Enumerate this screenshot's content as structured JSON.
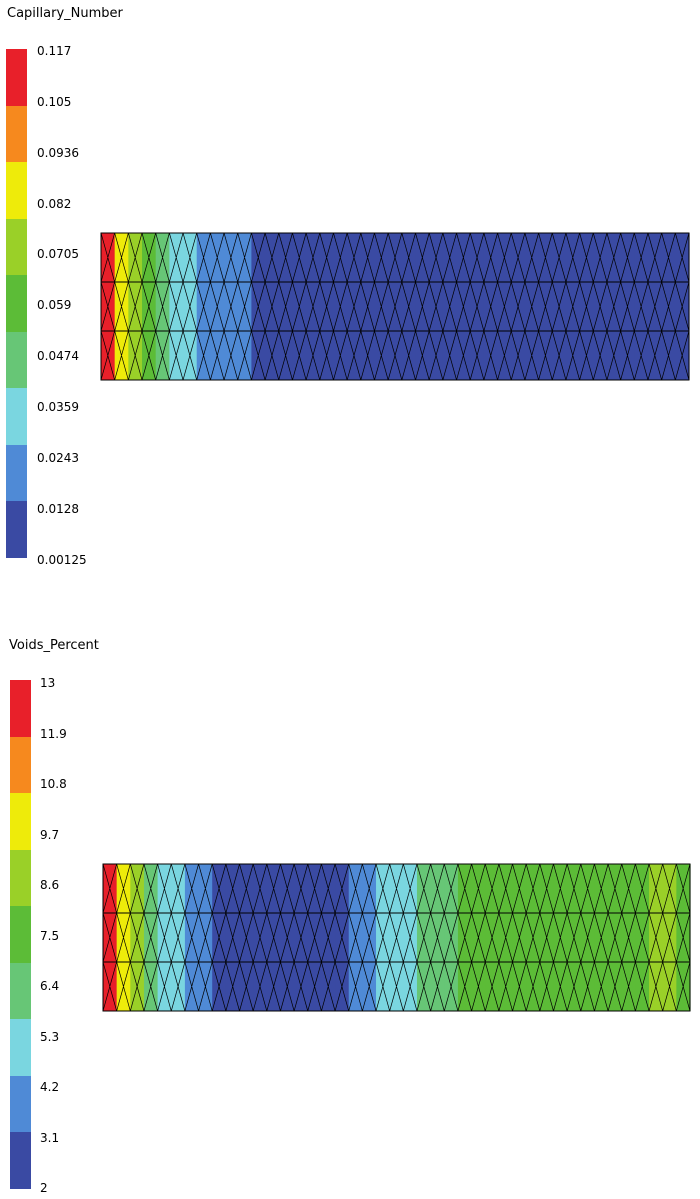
{
  "plots": [
    {
      "title": "Capillary_Number",
      "legend": {
        "labels": [
          "0.117",
          "0.105",
          "0.0936",
          "0.082",
          "0.0705",
          "0.059",
          "0.0474",
          "0.0359",
          "0.0243",
          "0.0128",
          "0.00125"
        ],
        "colors": [
          "#e8202a",
          "#f6891e",
          "#eeeb0a",
          "#9ad028",
          "#5cbc37",
          "#67c676",
          "#7ad6e0",
          "#4f8ad6",
          "#3a4aa3"
        ]
      },
      "mesh": {
        "rows": 3,
        "columns": 43,
        "column_colors": [
          "#e8202a",
          "#eeeb0a",
          "#9ad028",
          "#5cbc37",
          "#67c676",
          "#7ad6e0",
          "#7ad6e0",
          "#4f8ad6",
          "#4f8ad6",
          "#4f8ad6",
          "#4f8ad6",
          "#3a4aa3",
          "#3a4aa3",
          "#3a4aa3",
          "#3a4aa3",
          "#3a4aa3",
          "#3a4aa3",
          "#3a4aa3",
          "#3a4aa3",
          "#3a4aa3",
          "#3a4aa3",
          "#3a4aa3",
          "#3a4aa3",
          "#3a4aa3",
          "#3a4aa3",
          "#3a4aa3",
          "#3a4aa3",
          "#3a4aa3",
          "#3a4aa3",
          "#3a4aa3",
          "#3a4aa3",
          "#3a4aa3",
          "#3a4aa3",
          "#3a4aa3",
          "#3a4aa3",
          "#3a4aa3",
          "#3a4aa3",
          "#3a4aa3",
          "#3a4aa3",
          "#3a4aa3",
          "#3a4aa3",
          "#3a4aa3",
          "#3a4aa3"
        ]
      }
    },
    {
      "title": "Voids_Percent",
      "legend": {
        "labels": [
          "13",
          "11.9",
          "10.8",
          "9.7",
          "8.6",
          "7.5",
          "6.4",
          "5.3",
          "4.2",
          "3.1",
          "2"
        ],
        "colors": [
          "#e8202a",
          "#f6891e",
          "#eeeb0a",
          "#9ad028",
          "#5cbc37",
          "#67c676",
          "#7ad6e0",
          "#4f8ad6",
          "#3a4aa3"
        ]
      },
      "mesh": {
        "rows": 3,
        "columns": 43,
        "column_colors": [
          "#e8202a",
          "#eeeb0a",
          "#9ad028",
          "#67c676",
          "#7ad6e0",
          "#7ad6e0",
          "#4f8ad6",
          "#4f8ad6",
          "#3a4aa3",
          "#3a4aa3",
          "#3a4aa3",
          "#3a4aa3",
          "#3a4aa3",
          "#3a4aa3",
          "#3a4aa3",
          "#3a4aa3",
          "#3a4aa3",
          "#3a4aa3",
          "#4f8ad6",
          "#4f8ad6",
          "#7ad6e0",
          "#7ad6e0",
          "#7ad6e0",
          "#67c676",
          "#67c676",
          "#67c676",
          "#5cbc37",
          "#5cbc37",
          "#5cbc37",
          "#5cbc37",
          "#5cbc37",
          "#5cbc37",
          "#5cbc37",
          "#5cbc37",
          "#5cbc37",
          "#5cbc37",
          "#5cbc37",
          "#5cbc37",
          "#5cbc37",
          "#5cbc37",
          "#9ad028",
          "#9ad028",
          "#5cbc37"
        ]
      }
    }
  ]
}
